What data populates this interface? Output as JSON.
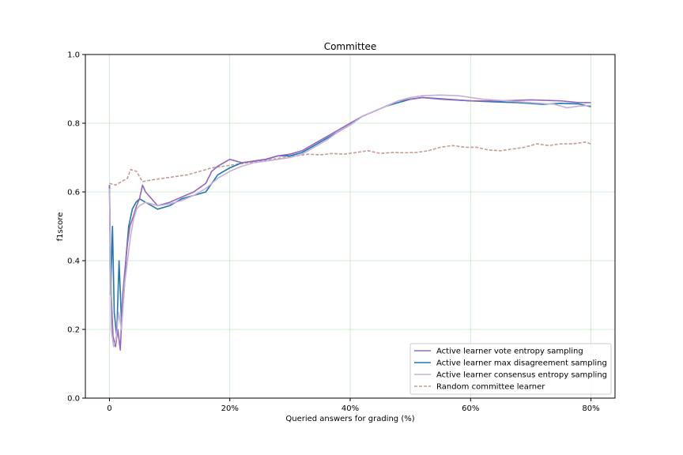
{
  "chart_data": {
    "type": "line",
    "title": "Committee",
    "xlabel": "Queried answers for grading (%)",
    "ylabel": "f1score",
    "xlim": [
      -4,
      84
    ],
    "ylim": [
      0.0,
      1.0
    ],
    "x_ticks": [
      0,
      20,
      40,
      60,
      80
    ],
    "x_tick_labels": [
      "0",
      "20%",
      "40%",
      "60%",
      "80%"
    ],
    "y_ticks": [
      0.0,
      0.2,
      0.4,
      0.6,
      0.8,
      1.0
    ],
    "y_tick_labels": [
      "0.0",
      "0.2",
      "0.4",
      "0.6",
      "0.8",
      "1.0"
    ],
    "grid": true,
    "grid_color": "#9fd39f",
    "legend_position": "lower right",
    "series": [
      {
        "name": "Active learner vote entropy sampling",
        "color": "#9467bd",
        "style": "solid",
        "points": [
          [
            0,
            0.62
          ],
          [
            0.3,
            0.3
          ],
          [
            0.6,
            0.18
          ],
          [
            1,
            0.15
          ],
          [
            1.4,
            0.2
          ],
          [
            1.8,
            0.14
          ],
          [
            2.2,
            0.3
          ],
          [
            2.6,
            0.38
          ],
          [
            3,
            0.45
          ],
          [
            3.4,
            0.5
          ],
          [
            4,
            0.53
          ],
          [
            4.5,
            0.56
          ],
          [
            5,
            0.58
          ],
          [
            5.5,
            0.62
          ],
          [
            6,
            0.6
          ],
          [
            7,
            0.58
          ],
          [
            8,
            0.56
          ],
          [
            10,
            0.57
          ],
          [
            12,
            0.585
          ],
          [
            14,
            0.6
          ],
          [
            16,
            0.625
          ],
          [
            17,
            0.66
          ],
          [
            18,
            0.675
          ],
          [
            19,
            0.685
          ],
          [
            20,
            0.695
          ],
          [
            22,
            0.685
          ],
          [
            24,
            0.69
          ],
          [
            26,
            0.695
          ],
          [
            28,
            0.705
          ],
          [
            30,
            0.71
          ],
          [
            32,
            0.72
          ],
          [
            34,
            0.74
          ],
          [
            36,
            0.76
          ],
          [
            38,
            0.78
          ],
          [
            40,
            0.8
          ],
          [
            42,
            0.82
          ],
          [
            44,
            0.835
          ],
          [
            46,
            0.85
          ],
          [
            48,
            0.865
          ],
          [
            50,
            0.87
          ],
          [
            52,
            0.875
          ],
          [
            55,
            0.87
          ],
          [
            60,
            0.865
          ],
          [
            65,
            0.865
          ],
          [
            70,
            0.868
          ],
          [
            75,
            0.865
          ],
          [
            78,
            0.86
          ],
          [
            80,
            0.86
          ]
        ]
      },
      {
        "name": "Active learner max disagreement sampling",
        "color": "#1f77b4",
        "style": "solid",
        "points": [
          [
            0,
            0.62
          ],
          [
            0.2,
            0.3
          ],
          [
            0.5,
            0.5
          ],
          [
            0.8,
            0.25
          ],
          [
            1.2,
            0.18
          ],
          [
            1.6,
            0.4
          ],
          [
            2,
            0.22
          ],
          [
            2.4,
            0.3
          ],
          [
            2.8,
            0.42
          ],
          [
            3.2,
            0.5
          ],
          [
            3.8,
            0.55
          ],
          [
            4.4,
            0.57
          ],
          [
            5,
            0.58
          ],
          [
            6,
            0.57
          ],
          [
            7,
            0.56
          ],
          [
            8,
            0.55
          ],
          [
            10,
            0.56
          ],
          [
            12,
            0.58
          ],
          [
            14,
            0.59
          ],
          [
            16,
            0.6
          ],
          [
            18,
            0.65
          ],
          [
            20,
            0.67
          ],
          [
            22,
            0.685
          ],
          [
            24,
            0.69
          ],
          [
            26,
            0.695
          ],
          [
            28,
            0.705
          ],
          [
            30,
            0.705
          ],
          [
            32,
            0.715
          ],
          [
            34,
            0.735
          ],
          [
            36,
            0.755
          ],
          [
            38,
            0.775
          ],
          [
            40,
            0.795
          ],
          [
            42,
            0.82
          ],
          [
            44,
            0.835
          ],
          [
            46,
            0.85
          ],
          [
            48,
            0.86
          ],
          [
            50,
            0.87
          ],
          [
            52,
            0.875
          ],
          [
            56,
            0.87
          ],
          [
            60,
            0.865
          ],
          [
            64,
            0.862
          ],
          [
            68,
            0.86
          ],
          [
            72,
            0.855
          ],
          [
            75,
            0.858
          ],
          [
            78,
            0.856
          ],
          [
            80,
            0.848
          ]
        ]
      },
      {
        "name": "Active learner consensus entropy sampling",
        "color": "#c5b0d5",
        "style": "solid",
        "points": [
          [
            0,
            0.61
          ],
          [
            0.3,
            0.2
          ],
          [
            0.7,
            0.15
          ],
          [
            1.1,
            0.17
          ],
          [
            1.5,
            0.25
          ],
          [
            2,
            0.2
          ],
          [
            2.5,
            0.33
          ],
          [
            3,
            0.4
          ],
          [
            3.5,
            0.47
          ],
          [
            4,
            0.52
          ],
          [
            4.5,
            0.55
          ],
          [
            5,
            0.56
          ],
          [
            6,
            0.57
          ],
          [
            7,
            0.565
          ],
          [
            8,
            0.56
          ],
          [
            10,
            0.565
          ],
          [
            12,
            0.575
          ],
          [
            14,
            0.59
          ],
          [
            16,
            0.61
          ],
          [
            18,
            0.64
          ],
          [
            20,
            0.66
          ],
          [
            22,
            0.675
          ],
          [
            24,
            0.685
          ],
          [
            26,
            0.69
          ],
          [
            28,
            0.695
          ],
          [
            30,
            0.7
          ],
          [
            32,
            0.71
          ],
          [
            34,
            0.73
          ],
          [
            36,
            0.75
          ],
          [
            38,
            0.775
          ],
          [
            40,
            0.795
          ],
          [
            42,
            0.82
          ],
          [
            44,
            0.835
          ],
          [
            46,
            0.85
          ],
          [
            48,
            0.865
          ],
          [
            50,
            0.875
          ],
          [
            52,
            0.88
          ],
          [
            55,
            0.882
          ],
          [
            58,
            0.88
          ],
          [
            62,
            0.87
          ],
          [
            66,
            0.865
          ],
          [
            70,
            0.86
          ],
          [
            74,
            0.855
          ],
          [
            76,
            0.845
          ],
          [
            78,
            0.85
          ],
          [
            80,
            0.852
          ]
        ]
      },
      {
        "name": "Random committee learner",
        "color": "#c49c94",
        "style": "dashed",
        "points": [
          [
            0,
            0.625
          ],
          [
            1,
            0.62
          ],
          [
            2,
            0.63
          ],
          [
            3,
            0.64
          ],
          [
            3.5,
            0.665
          ],
          [
            4.5,
            0.66
          ],
          [
            5.5,
            0.63
          ],
          [
            7,
            0.635
          ],
          [
            9,
            0.64
          ],
          [
            11,
            0.645
          ],
          [
            13,
            0.65
          ],
          [
            15,
            0.66
          ],
          [
            17,
            0.67
          ],
          [
            19,
            0.675
          ],
          [
            21,
            0.68
          ],
          [
            23,
            0.685
          ],
          [
            25,
            0.69
          ],
          [
            27,
            0.695
          ],
          [
            29,
            0.7
          ],
          [
            31,
            0.705
          ],
          [
            33,
            0.71
          ],
          [
            35,
            0.708
          ],
          [
            37,
            0.712
          ],
          [
            39,
            0.71
          ],
          [
            41,
            0.715
          ],
          [
            43,
            0.72
          ],
          [
            45,
            0.712
          ],
          [
            47,
            0.715
          ],
          [
            49,
            0.714
          ],
          [
            51,
            0.715
          ],
          [
            53,
            0.72
          ],
          [
            55,
            0.73
          ],
          [
            57,
            0.735
          ],
          [
            59,
            0.73
          ],
          [
            61,
            0.73
          ],
          [
            63,
            0.722
          ],
          [
            65,
            0.72
          ],
          [
            67,
            0.725
          ],
          [
            69,
            0.73
          ],
          [
            71,
            0.74
          ],
          [
            73,
            0.735
          ],
          [
            75,
            0.74
          ],
          [
            77,
            0.74
          ],
          [
            79,
            0.745
          ],
          [
            80,
            0.74
          ]
        ]
      }
    ]
  }
}
